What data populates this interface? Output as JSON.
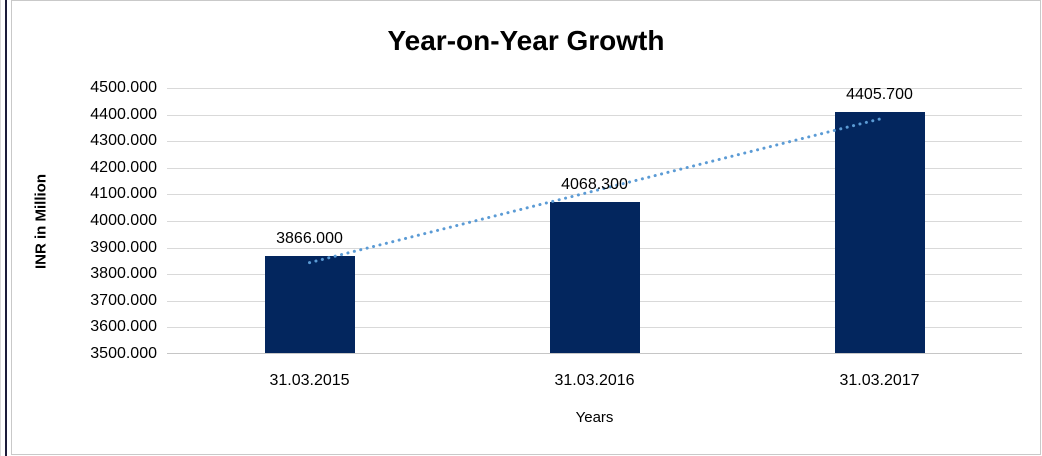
{
  "chart_data": {
    "type": "bar",
    "title": "Year-on-Year Growth",
    "xlabel": "Years",
    "ylabel": "INR in Million",
    "categories": [
      "31.03.2015",
      "31.03.2016",
      "31.03.2017"
    ],
    "values": [
      3866.0,
      4068.3,
      4405.7
    ],
    "data_labels": [
      "3866.000",
      "4068.300",
      "4405.700"
    ],
    "ylim": [
      3500,
      4500
    ],
    "ytick_step": 100,
    "ytick_labels": [
      "4500.000",
      "4400.000",
      "4300.000",
      "4200.000",
      "4100.000",
      "4000.000",
      "3900.000",
      "3800.000",
      "3700.000",
      "3600.000",
      "3500.000"
    ],
    "grid": true,
    "legend": "none",
    "bar_color": "#03265e",
    "gridline_color": "#d9d9d9",
    "trendline": {
      "type": "linear",
      "style": "dotted",
      "color": "#5b9bd5"
    }
  }
}
